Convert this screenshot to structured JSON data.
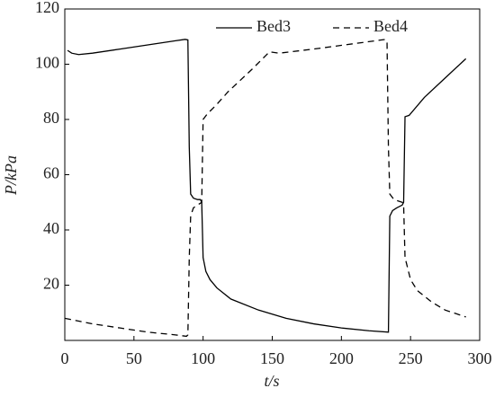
{
  "chart_data": {
    "type": "line",
    "xlabel": "t/s",
    "ylabel": "P/kPa",
    "xlim": [
      0,
      300
    ],
    "xticks": [
      0,
      50,
      100,
      150,
      200,
      250,
      300
    ],
    "ylim": [
      0,
      120
    ],
    "yticks": [
      20,
      40,
      60,
      80,
      100,
      120
    ],
    "series": [
      {
        "name": "Bed3",
        "color": "#000000",
        "dash": "solid",
        "x": [
          2,
          5,
          10,
          20,
          40,
          60,
          80,
          87,
          89,
          90,
          91,
          93,
          96,
          98,
          99,
          100,
          102,
          105,
          110,
          120,
          140,
          160,
          180,
          200,
          220,
          234,
          235,
          237,
          240,
          244,
          245,
          246,
          249,
          260,
          275,
          290
        ],
        "values": [
          105,
          104,
          103.5,
          104,
          105.5,
          107,
          108.5,
          109,
          108.8,
          70,
          53,
          51.5,
          51,
          51,
          50,
          30,
          25,
          22,
          19,
          15,
          11,
          8,
          6,
          4.5,
          3.5,
          3,
          45,
          47,
          48,
          49,
          50,
          81,
          81.5,
          88,
          95,
          102
        ]
      },
      {
        "name": "Bed4",
        "color": "#000000",
        "dash": "dashed",
        "x": [
          0,
          20,
          40,
          60,
          80,
          88,
          89,
          90,
          91,
          93,
          96,
          99,
          100,
          103,
          110,
          118,
          135,
          145,
          148,
          155,
          180,
          210,
          232,
          233,
          234,
          235,
          238,
          244,
          245,
          246,
          250,
          255,
          265,
          275,
          290
        ],
        "values": [
          8,
          6,
          4.5,
          3,
          2,
          1.5,
          2,
          30,
          45,
          48,
          49,
          50,
          80,
          82,
          85.5,
          90,
          98,
          103,
          104.5,
          104,
          105.5,
          107.5,
          109,
          108,
          70,
          53,
          51,
          50,
          49,
          30,
          22,
          18,
          14,
          11,
          8.5
        ]
      }
    ]
  }
}
